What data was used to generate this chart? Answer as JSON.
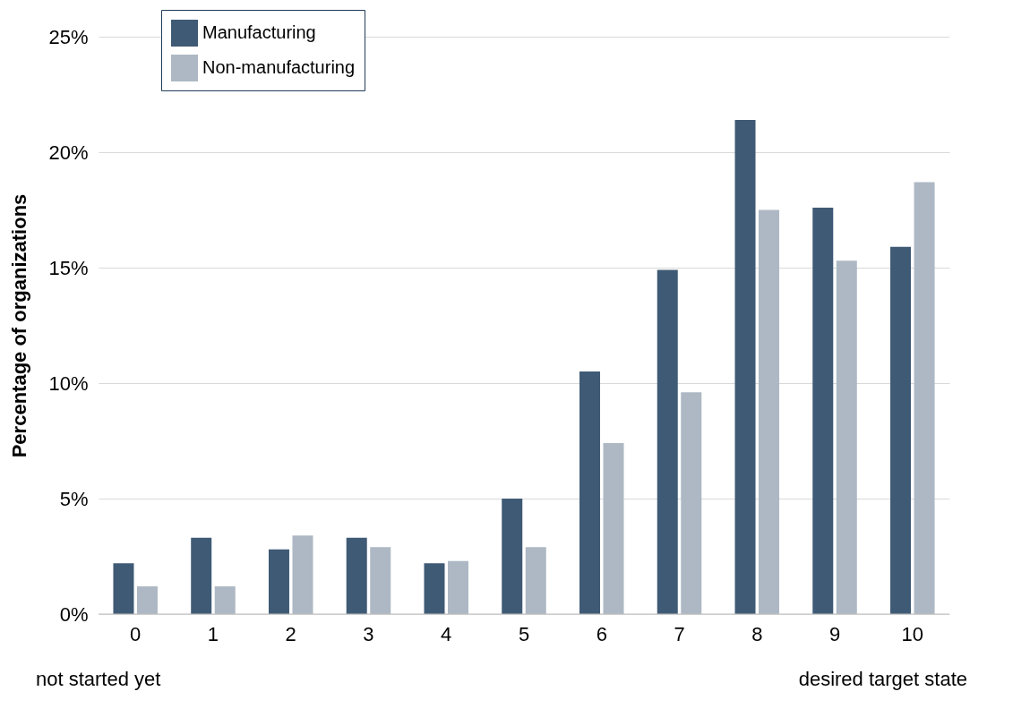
{
  "chart_data": {
    "type": "bar",
    "ylabel": "Percentage of organizations",
    "categories": [
      "0",
      "1",
      "2",
      "3",
      "4",
      "5",
      "6",
      "7",
      "8",
      "9",
      "10"
    ],
    "series": [
      {
        "name": "Manufacturing",
        "color": "#3f5a75",
        "values": [
          2.2,
          3.3,
          2.8,
          3.3,
          2.2,
          5.0,
          10.5,
          14.9,
          21.4,
          17.6,
          15.9
        ]
      },
      {
        "name": "Non-manufacturing",
        "color": "#adb8c4",
        "values": [
          1.2,
          1.2,
          3.4,
          2.9,
          2.3,
          2.9,
          7.4,
          9.6,
          17.5,
          15.3,
          18.7
        ]
      }
    ],
    "ylim": [
      0,
      25
    ],
    "yticks": [
      {
        "value": 0,
        "label": "0%"
      },
      {
        "value": 5,
        "label": "5%"
      },
      {
        "value": 10,
        "label": "10%"
      },
      {
        "value": 15,
        "label": "15%"
      },
      {
        "value": 20,
        "label": "20%"
      },
      {
        "value": 25,
        "label": "25%"
      }
    ],
    "grid": "y",
    "legend": "top left",
    "annotations": [
      "not started yet",
      "desired target state"
    ]
  }
}
